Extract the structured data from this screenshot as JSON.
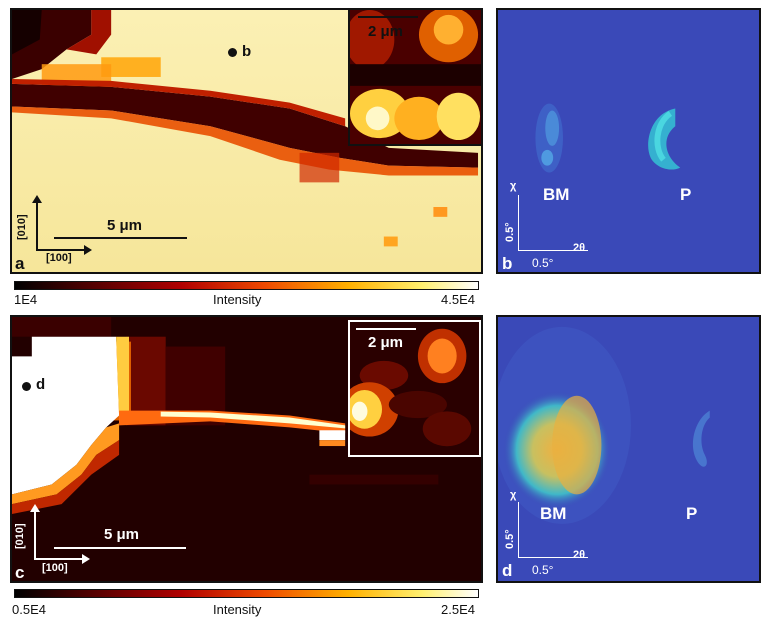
{
  "panels": {
    "a": {
      "letter": "a",
      "point_label": "b",
      "inset_scale": "2 μm",
      "scale": "5 μm",
      "axis_x": "[100]",
      "axis_y": "[010]"
    },
    "b": {
      "letter": "b",
      "label_bm": "BM",
      "label_p": "P",
      "axis_chi": "χ",
      "axis_2theta": "2θ",
      "scale_h": "0.5°",
      "scale_v": "0.5°"
    },
    "c": {
      "letter": "c",
      "point_label": "d",
      "inset_scale": "2 μm",
      "scale": "5 μm",
      "axis_x": "[100]",
      "axis_y": "[010]"
    },
    "d": {
      "letter": "d",
      "label_bm": "BM",
      "label_p": "P",
      "axis_chi": "χ",
      "axis_2theta": "2θ",
      "scale_h": "0.5°",
      "scale_v": "0.5°"
    }
  },
  "colorbars": {
    "top": {
      "min": "1E4",
      "title": "Intensity",
      "max": "4.5E4"
    },
    "bottom": {
      "min": "0.5E4",
      "title": "Intensity",
      "max": "2.5E4"
    }
  },
  "colors": {
    "hot_low": "#000000",
    "hot_mid": "#d42000",
    "hot_high": "#ffffff",
    "detector_bg": "#3a49b8",
    "bragg_peak": "#2fc8d8",
    "bragg_peak_hot": "#e8b040"
  }
}
